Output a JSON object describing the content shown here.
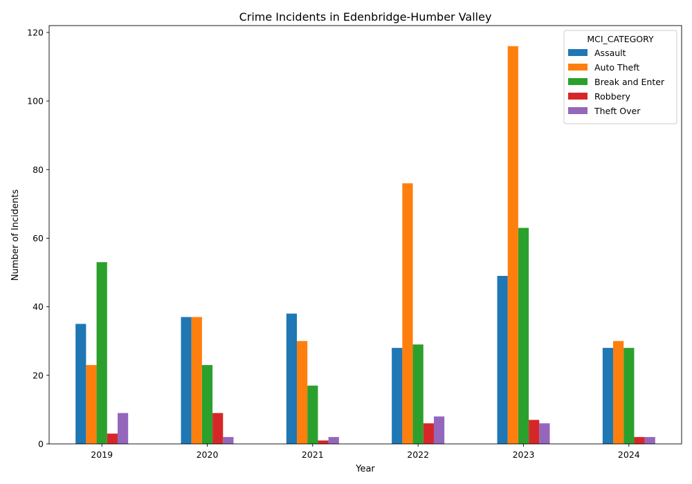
{
  "chart_data": {
    "type": "bar",
    "title": "Crime Incidents in Edenbridge-Humber Valley",
    "xlabel": "Year",
    "ylabel": "Number of Incidents",
    "categories": [
      "2019",
      "2020",
      "2021",
      "2022",
      "2023",
      "2024"
    ],
    "ylim": [
      0,
      122
    ],
    "yticks": [
      0,
      20,
      40,
      60,
      80,
      100,
      120
    ],
    "grid": false,
    "legend": {
      "title": "MCI_CATEGORY",
      "placement": "top-right"
    },
    "series": [
      {
        "name": "Assault",
        "color": "#1f77b4",
        "values": [
          35,
          37,
          38,
          28,
          49,
          28
        ]
      },
      {
        "name": "Auto Theft",
        "color": "#ff7f0e",
        "values": [
          23,
          37,
          30,
          76,
          116,
          30
        ]
      },
      {
        "name": "Break and Enter",
        "color": "#2ca02c",
        "values": [
          53,
          23,
          17,
          29,
          63,
          28
        ]
      },
      {
        "name": "Robbery",
        "color": "#d62728",
        "values": [
          3,
          9,
          1,
          6,
          7,
          2
        ]
      },
      {
        "name": "Theft Over",
        "color": "#9467bd",
        "values": [
          9,
          2,
          2,
          8,
          6,
          2
        ]
      }
    ]
  }
}
